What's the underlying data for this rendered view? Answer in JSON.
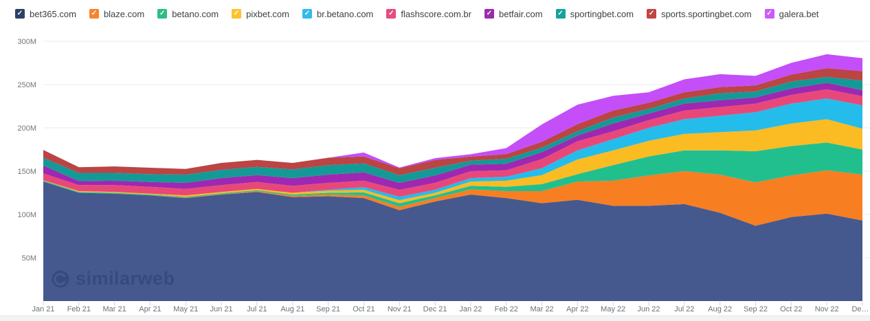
{
  "watermark": {
    "text": "similarweb"
  },
  "chart_data": {
    "type": "area",
    "stacked": true,
    "title": "",
    "xlabel": "",
    "ylabel": "",
    "unit": "M visits",
    "grid": true,
    "legend_position": "top",
    "ylim": [
      0,
      300
    ],
    "y_ticks": {
      "labels": [
        "50M",
        "100M",
        "150M",
        "200M",
        "250M",
        "300M"
      ],
      "values": [
        50,
        100,
        150,
        200,
        250,
        300
      ]
    },
    "months": [
      "Jan 21",
      "Feb 21",
      "Mar 21",
      "Apr 21",
      "May 21",
      "Jun 21",
      "Jul 21",
      "Aug 21",
      "Sep 21",
      "Oct 21",
      "Nov 21",
      "Dec 21",
      "Jan 22",
      "Feb 22",
      "Mar 22",
      "Apr 22",
      "May 22",
      "Jun 22",
      "Jul 22",
      "Aug 22",
      "Sep 22",
      "Oct 22",
      "Nov 22",
      "De…"
    ],
    "series": [
      {
        "name": "bet365.com",
        "color": "#46598f",
        "swatch": "#2d4168",
        "values": [
          138,
          125,
          124,
          122,
          119,
          123,
          126,
          120,
          121,
          119,
          105,
          115,
          123,
          119,
          113,
          117,
          110,
          110,
          112,
          102,
          87,
          97,
          101,
          93
        ]
      },
      {
        "name": "blaze.com",
        "color": "#f87e22",
        "swatch": "#f8842c",
        "values": [
          0,
          0,
          0,
          0,
          0.5,
          0.5,
          1,
          1.5,
          2,
          3,
          4,
          4,
          6,
          8,
          14,
          21,
          29,
          35,
          38,
          44,
          50,
          48,
          50,
          53
        ]
      },
      {
        "name": "betano.com",
        "color": "#22bf8e",
        "swatch": "#2ebd85",
        "values": [
          1,
          1,
          1,
          1,
          1,
          1,
          1,
          1.5,
          2,
          3.5,
          4,
          3,
          4,
          5,
          8,
          8.5,
          18,
          22,
          24,
          28,
          36,
          34,
          32,
          29
        ]
      },
      {
        "name": "pixbet.com",
        "color": "#fbbb23",
        "swatch": "#fcc32e",
        "values": [
          0.5,
          1,
          1,
          1,
          1.5,
          1.5,
          1.5,
          2,
          2.5,
          3,
          3.5,
          3,
          5,
          7,
          10.5,
          17,
          17,
          18,
          19,
          21,
          24,
          26,
          27,
          24
        ]
      },
      {
        "name": "br.betano.com",
        "color": "#24bceb",
        "swatch": "#35bbe9",
        "values": [
          0,
          0,
          0,
          0,
          0,
          0,
          0,
          0,
          1,
          3,
          4,
          3.5,
          4,
          4.5,
          8,
          10.5,
          13,
          15,
          17,
          19,
          21,
          23,
          24,
          27
        ]
      },
      {
        "name": "flashscore.com.br",
        "color": "#e84879",
        "swatch": "#e84c7d",
        "values": [
          8,
          7,
          8,
          8,
          7.5,
          8,
          8,
          8,
          8,
          7.5,
          8,
          8,
          8,
          7.5,
          10.5,
          10.5,
          9,
          9,
          10,
          10,
          10,
          10,
          10.5,
          10.5
        ]
      },
      {
        "name": "betfair.com",
        "color": "#9e28b1",
        "swatch": "#9d2bad",
        "values": [
          9,
          4.5,
          5,
          5.5,
          7,
          8,
          8,
          9,
          9.5,
          9.5,
          8,
          8.5,
          7.5,
          7.5,
          8,
          6.5,
          9,
          7.5,
          8,
          8,
          7,
          7.5,
          7.5,
          7
        ]
      },
      {
        "name": "sportingbet.com",
        "color": "#149a96",
        "swatch": "#18a19c",
        "values": [
          9,
          9.5,
          9,
          9,
          9.5,
          9.5,
          9.5,
          10,
          11,
          10.5,
          8.8,
          9,
          4.6,
          5.8,
          5.3,
          5.3,
          7,
          5.5,
          6,
          8,
          7,
          8,
          7,
          11
        ]
      },
      {
        "name": "sports.sportingbet.com",
        "color": "#bb4444",
        "swatch": "#c04543",
        "values": [
          9,
          6.5,
          7.5,
          7.5,
          6.5,
          8,
          8,
          7.5,
          8.5,
          8,
          8,
          9,
          4.7,
          5.3,
          6.7,
          8,
          8,
          7,
          7,
          7,
          7,
          8,
          10,
          11
        ]
      },
      {
        "name": "galera.bet",
        "color": "#c44ef8",
        "swatch": "#cb5cf7",
        "values": [
          0,
          0,
          0,
          0,
          0,
          0,
          0,
          0,
          0,
          4.5,
          0.8,
          2,
          2.7,
          7,
          20,
          22.5,
          17,
          12,
          15,
          15,
          11,
          13.5,
          16,
          15
        ]
      }
    ]
  }
}
